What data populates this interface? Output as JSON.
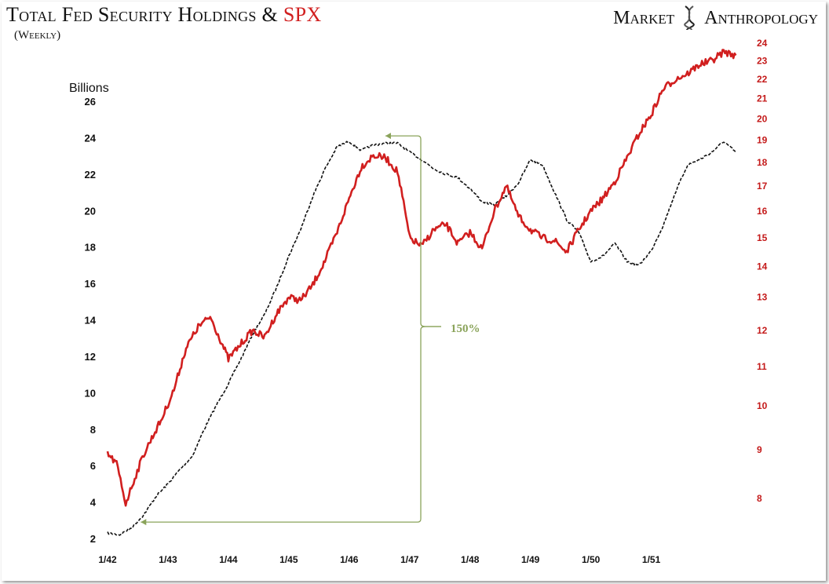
{
  "header": {
    "title_main": "Total Fed Security Holdings & ",
    "title_highlight": "SPX",
    "subtitle": "(Weekly)",
    "brand_left": "Market",
    "brand_right": "Anthropology"
  },
  "chart_data": {
    "type": "line",
    "ylabel": "Billions",
    "x_ticks": [
      "1/42",
      "1/43",
      "1/44",
      "1/45",
      "1/46",
      "1/47",
      "1/48",
      "1/49",
      "1/50",
      "1/51"
    ],
    "y_left_ticks": [
      2,
      4,
      6,
      8,
      10,
      12,
      14,
      16,
      18,
      20,
      22,
      24,
      26
    ],
    "y_right_ticks": [
      8,
      9,
      10,
      11,
      12,
      13,
      14,
      15,
      16,
      17,
      18,
      19,
      20,
      21,
      22,
      23,
      24
    ],
    "y_left_range": [
      2,
      26
    ],
    "y_right_range": [
      8,
      24
    ],
    "y_right_scale": "log",
    "grid": false,
    "annotation": {
      "text": "150%"
    },
    "series": [
      {
        "name": "Total Fed Security Holdings",
        "axis": "left",
        "color": "#111111",
        "style": "dashed",
        "points": [
          [
            1942.0,
            2.3
          ],
          [
            1942.2,
            2.2
          ],
          [
            1942.4,
            2.6
          ],
          [
            1942.6,
            3.3
          ],
          [
            1942.8,
            4.3
          ],
          [
            1943.0,
            5.0
          ],
          [
            1943.2,
            5.8
          ],
          [
            1943.4,
            6.5
          ],
          [
            1943.6,
            8.0
          ],
          [
            1943.8,
            9.3
          ],
          [
            1944.0,
            10.5
          ],
          [
            1944.2,
            11.8
          ],
          [
            1944.4,
            13.2
          ],
          [
            1944.6,
            14.3
          ],
          [
            1944.8,
            15.8
          ],
          [
            1945.0,
            17.5
          ],
          [
            1945.2,
            19.0
          ],
          [
            1945.4,
            20.8
          ],
          [
            1945.6,
            22.3
          ],
          [
            1945.8,
            23.5
          ],
          [
            1946.0,
            23.8
          ],
          [
            1946.2,
            23.3
          ],
          [
            1946.4,
            23.6
          ],
          [
            1946.6,
            23.7
          ],
          [
            1946.8,
            23.7
          ],
          [
            1947.0,
            23.2
          ],
          [
            1947.2,
            22.8
          ],
          [
            1947.4,
            22.3
          ],
          [
            1947.6,
            22.0
          ],
          [
            1947.8,
            21.8
          ],
          [
            1948.0,
            21.2
          ],
          [
            1948.2,
            20.5
          ],
          [
            1948.4,
            20.3
          ],
          [
            1948.6,
            20.8
          ],
          [
            1948.8,
            21.5
          ],
          [
            1949.0,
            22.8
          ],
          [
            1949.2,
            22.5
          ],
          [
            1949.4,
            21.0
          ],
          [
            1949.6,
            19.5
          ],
          [
            1949.8,
            18.8
          ],
          [
            1950.0,
            17.2
          ],
          [
            1950.2,
            17.5
          ],
          [
            1950.4,
            18.2
          ],
          [
            1950.6,
            17.2
          ],
          [
            1950.8,
            17.0
          ],
          [
            1951.0,
            17.8
          ],
          [
            1951.2,
            19.2
          ],
          [
            1951.4,
            21.0
          ],
          [
            1951.6,
            22.5
          ],
          [
            1951.8,
            22.8
          ],
          [
            1952.0,
            23.2
          ],
          [
            1952.2,
            23.8
          ],
          [
            1952.4,
            23.2
          ]
        ]
      },
      {
        "name": "SPX",
        "axis": "right",
        "color": "#d11f1f",
        "style": "solid",
        "points": [
          [
            1942.0,
            8.9
          ],
          [
            1942.15,
            8.7
          ],
          [
            1942.3,
            7.9
          ],
          [
            1942.45,
            8.4
          ],
          [
            1942.6,
            8.9
          ],
          [
            1942.75,
            9.3
          ],
          [
            1942.9,
            9.7
          ],
          [
            1943.1,
            10.4
          ],
          [
            1943.3,
            11.5
          ],
          [
            1943.5,
            12.1
          ],
          [
            1943.7,
            12.4
          ],
          [
            1943.85,
            11.8
          ],
          [
            1944.0,
            11.2
          ],
          [
            1944.2,
            11.6
          ],
          [
            1944.4,
            12.0
          ],
          [
            1944.6,
            11.8
          ],
          [
            1944.8,
            12.5
          ],
          [
            1945.0,
            13.0
          ],
          [
            1945.2,
            12.9
          ],
          [
            1945.4,
            13.4
          ],
          [
            1945.6,
            14.2
          ],
          [
            1945.8,
            15.2
          ],
          [
            1946.0,
            16.5
          ],
          [
            1946.2,
            17.8
          ],
          [
            1946.4,
            18.3
          ],
          [
            1946.6,
            18.2
          ],
          [
            1946.8,
            17.6
          ],
          [
            1947.0,
            15.0
          ],
          [
            1947.2,
            14.7
          ],
          [
            1947.4,
            15.3
          ],
          [
            1947.6,
            15.5
          ],
          [
            1947.8,
            14.8
          ],
          [
            1948.0,
            15.2
          ],
          [
            1948.2,
            14.6
          ],
          [
            1948.4,
            16.0
          ],
          [
            1948.6,
            17.0
          ],
          [
            1948.8,
            15.8
          ],
          [
            1949.0,
            15.3
          ],
          [
            1949.2,
            15.0
          ],
          [
            1949.4,
            14.9
          ],
          [
            1949.6,
            14.5
          ],
          [
            1949.8,
            15.3
          ],
          [
            1950.0,
            16.0
          ],
          [
            1950.2,
            16.5
          ],
          [
            1950.4,
            17.2
          ],
          [
            1950.6,
            18.2
          ],
          [
            1950.8,
            19.3
          ],
          [
            1951.0,
            20.2
          ],
          [
            1951.2,
            21.5
          ],
          [
            1951.4,
            22.0
          ],
          [
            1951.6,
            22.3
          ],
          [
            1951.8,
            22.8
          ],
          [
            1952.0,
            23.0
          ],
          [
            1952.2,
            23.5
          ],
          [
            1952.4,
            23.3
          ]
        ]
      }
    ]
  }
}
